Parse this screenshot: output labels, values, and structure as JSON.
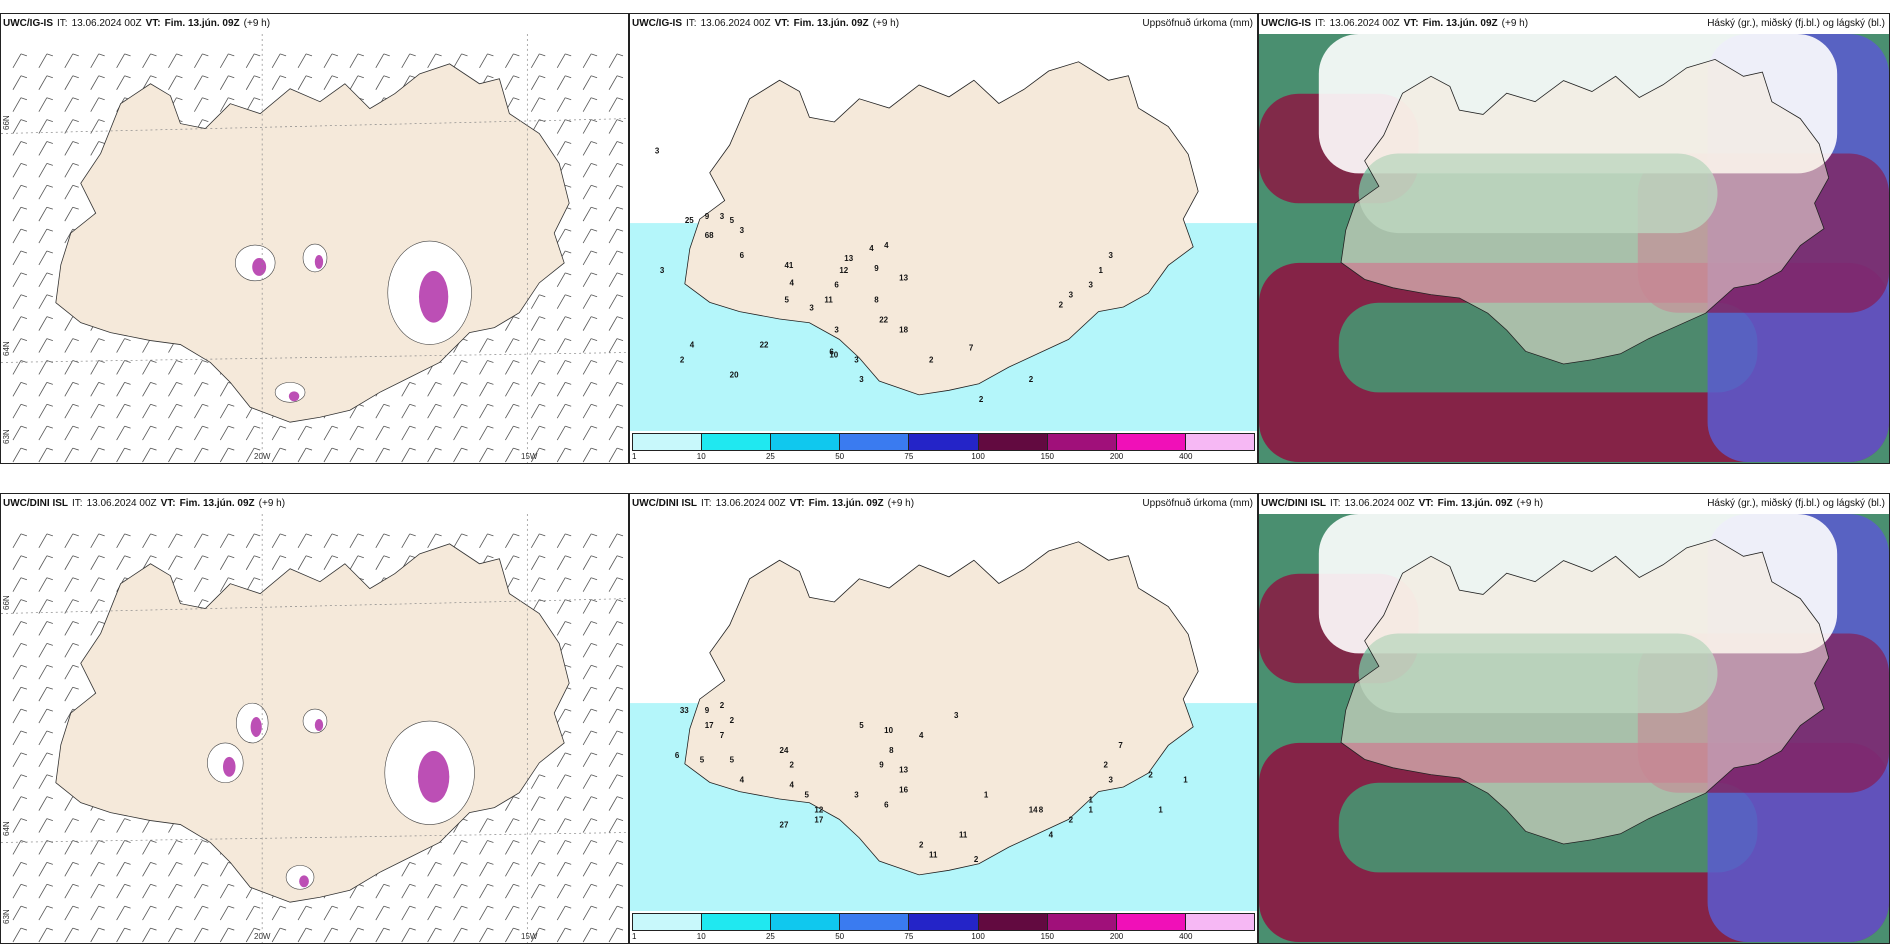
{
  "panels": [
    {
      "model": "UWC/IG-IS",
      "it_label": "IT:",
      "it_value": "13.06.2024 00Z",
      "vt_label": "VT:",
      "vt_value": "Fim. 13.jún. 09Z",
      "lead": "(+9 h)",
      "right_title": ""
    },
    {
      "model": "UWC/IG-IS",
      "it_label": "IT:",
      "it_value": "13.06.2024 00Z",
      "vt_label": "VT:",
      "vt_value": "Fim. 13.jún. 09Z",
      "lead": "(+9 h)",
      "right_title": "Uppsöfnuð úrkoma (mm)"
    },
    {
      "model": "UWC/IG-IS",
      "it_label": "IT:",
      "it_value": "13.06.2024 00Z",
      "vt_label": "VT:",
      "vt_value": "Fim. 13.jún. 09Z",
      "lead": "(+9 h)",
      "right_title": "Háský (gr.), miðský (fj.bl.) og lágský (bl.)"
    },
    {
      "model": "UWC/DINI ISL",
      "it_label": "IT:",
      "it_value": "13.06.2024 00Z",
      "vt_label": "VT:",
      "vt_value": "Fim. 13.jún. 09Z",
      "lead": "(+9 h)",
      "right_title": ""
    },
    {
      "model": "UWC/DINI ISL",
      "it_label": "IT:",
      "it_value": "13.06.2024 00Z",
      "vt_label": "VT:",
      "vt_value": "Fim. 13.jún. 09Z",
      "lead": "(+9 h)",
      "right_title": "Uppsöfnuð úrkoma (mm)"
    },
    {
      "model": "UWC/DINI ISL",
      "it_label": "IT:",
      "it_value": "13.06.2024 00Z",
      "vt_label": "VT:",
      "vt_value": "Fim. 13.jún. 09Z",
      "lead": "(+9 h)",
      "right_title": "Háský (gr.), miðský (fj.bl.) og lágský (bl.)"
    }
  ],
  "axis_labels": {
    "lat66": "66N",
    "lat64": "64N",
    "lat63": "63N",
    "lon20": "20W",
    "lon15": "15W"
  },
  "legend": {
    "labels": [
      "1",
      "10",
      "25",
      "50",
      "75",
      "100",
      "150",
      "200",
      "400"
    ],
    "colors": [
      "#c8f8fb",
      "#20e8f0",
      "#10c8ee",
      "#3a7bf0",
      "#2424c8",
      "#620a40",
      "#a0107a",
      "#f010b8",
      "#f6b8f4"
    ]
  },
  "colors": {
    "land": "#f5e9da",
    "snow": "#ffffff",
    "sea_precip": "#b4f6fa",
    "high_cloud": "#4a8f70",
    "mid_cloud": "#8f1040",
    "low_cloud": "#5b5bd0",
    "glacier_pink": "#b030a8"
  },
  "precip_values_ig": [
    "3",
    "25",
    "9",
    "3",
    "5",
    "3",
    "68",
    "6",
    "3",
    "41",
    "4",
    "5",
    "11",
    "3",
    "13",
    "12",
    "6",
    "4",
    "4",
    "9",
    "13",
    "8",
    "22",
    "3",
    "10",
    "2",
    "4",
    "20",
    "22",
    "6",
    "18",
    "3",
    "3",
    "2",
    "7",
    "2",
    "2",
    "2",
    "3",
    "1",
    "3",
    "3"
  ],
  "precip_values_dini": [
    "33",
    "9",
    "2",
    "17",
    "2",
    "7",
    "6",
    "5",
    "5",
    "24",
    "2",
    "4",
    "4",
    "12",
    "5",
    "27",
    "17",
    "3",
    "16",
    "5",
    "10",
    "8",
    "9",
    "4",
    "13",
    "3",
    "6",
    "2",
    "11",
    "11",
    "2",
    "1",
    "14",
    "8",
    "4",
    "2",
    "1",
    "1",
    "2",
    "3",
    "7",
    "2",
    "1",
    "1"
  ]
}
